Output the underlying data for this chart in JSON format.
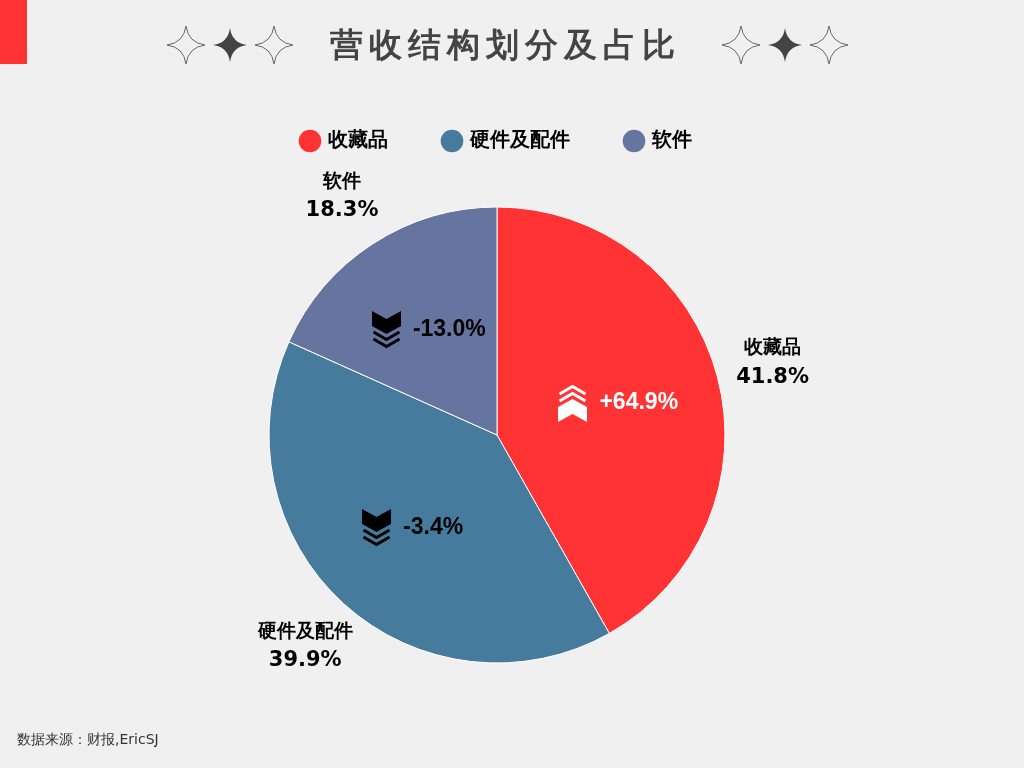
{
  "chart_data": {
    "type": "pie",
    "title": "营收结构划分及占比",
    "categories": [
      "收藏品",
      "硬件及配件",
      "软件"
    ],
    "values": [
      41.8,
      39.9,
      18.3
    ],
    "colors": [
      "#ff3333",
      "#467b9d",
      "#6674a0"
    ],
    "value_labels": [
      "41.8%",
      "39.9%",
      "18.3%"
    ],
    "legend": "top",
    "annotations": [
      {
        "text": "+64.9%",
        "x": "收藏品"
      },
      {
        "text": "-3.4%",
        "x": "硬件及配件"
      },
      {
        "text": "-13.0%",
        "x": "软件"
      },
      "数据来源：财报,EricSJ"
    ]
  }
}
